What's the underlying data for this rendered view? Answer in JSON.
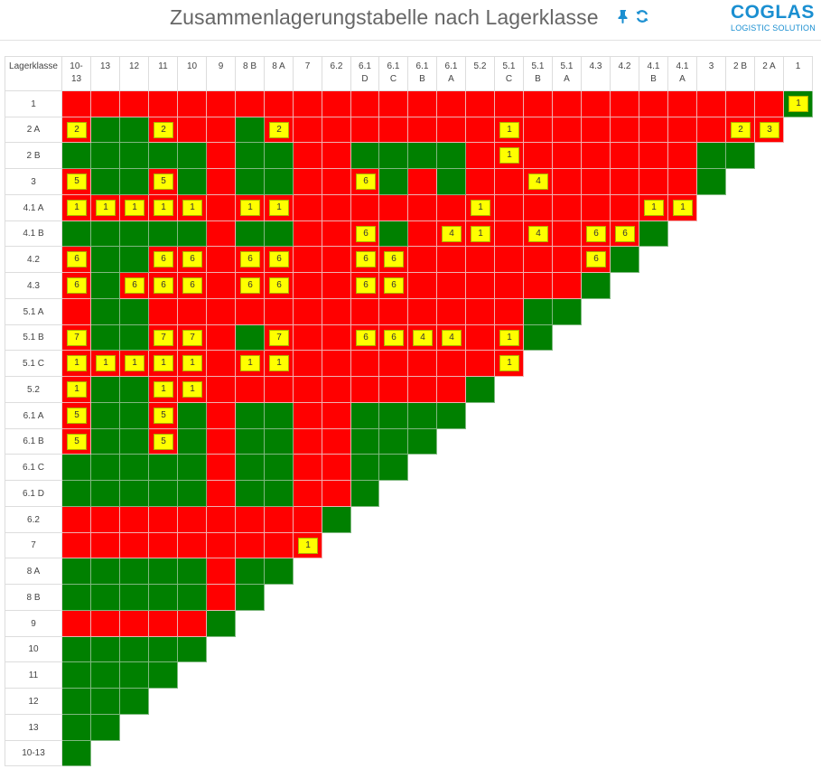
{
  "header": {
    "title": "Zusammenlagerungstabelle nach Lagerklasse",
    "pin_icon": "pin-icon",
    "refresh_icon": "refresh-icon",
    "logo_main": "COGLAS",
    "logo_sub": "LOGISTIC SOLUTION"
  },
  "colors": {
    "red": "#ff0000",
    "green": "#008000",
    "badge": "#ffff00",
    "accent": "#1a8fd1"
  },
  "table": {
    "corner_label": "Lagerklasse",
    "columns": [
      [
        "10-",
        "13"
      ],
      [
        "13"
      ],
      [
        "12"
      ],
      [
        "11"
      ],
      [
        "10"
      ],
      [
        "9"
      ],
      [
        "8 B"
      ],
      [
        "8 A"
      ],
      [
        "7"
      ],
      [
        "6.2"
      ],
      [
        "6.1",
        "D"
      ],
      [
        "6.1",
        "C"
      ],
      [
        "6.1",
        "B"
      ],
      [
        "6.1",
        "A"
      ],
      [
        "5.2"
      ],
      [
        "5.1",
        "C"
      ],
      [
        "5.1",
        "B"
      ],
      [
        "5.1",
        "A"
      ],
      [
        "4.3"
      ],
      [
        "4.2"
      ],
      [
        "4.1",
        "B"
      ],
      [
        "4.1",
        "A"
      ],
      [
        "3"
      ],
      [
        "2 B"
      ],
      [
        "2 A"
      ],
      [
        "1"
      ]
    ],
    "rows": [
      {
        "label": "1",
        "cells": "RRRRRRRRRRRRRRRRRRRRRRRRRG",
        "badges": {
          "25": "1"
        }
      },
      {
        "label": "2 A",
        "cells": "RGGRRRGRRRRRRRRRRRRRRRRRR",
        "badges": {
          "0": "2",
          "3": "2",
          "7": "2",
          "15": "1",
          "23": "2",
          "24": "3"
        }
      },
      {
        "label": "2 B",
        "cells": "GGGGGRGGRRGGGGRRRRRRRRGG",
        "badges": {
          "15": "1"
        }
      },
      {
        "label": "3",
        "cells": "RGGRGRGGRRRGRGRRRRRRRRG",
        "badges": {
          "0": "5",
          "3": "5",
          "10": "6",
          "16": "4"
        }
      },
      {
        "label": "4.1 A",
        "cells": "RRRRRRRRRRRRRRRRRRRRRR",
        "badges": {
          "0": "1",
          "1": "1",
          "2": "1",
          "3": "1",
          "4": "1",
          "6": "1",
          "7": "1",
          "14": "1",
          "20": "1",
          "21": "1"
        }
      },
      {
        "label": "4.1 B",
        "cells": "GGGGGRGGRRRGRRRRRRRRG",
        "badges": {
          "10": "6",
          "13": "4",
          "14": "1",
          "16": "4",
          "18": "6",
          "19": "6"
        }
      },
      {
        "label": "4.2",
        "cells": "RGGRRRRRRRRRRRRRRRRG",
        "badges": {
          "0": "6",
          "3": "6",
          "4": "6",
          "6": "6",
          "7": "6",
          "10": "6",
          "11": "6",
          "18": "6"
        }
      },
      {
        "label": "4.3",
        "cells": "RGRRRRRRRRRRRRRRRRG",
        "badges": {
          "0": "6",
          "2": "6",
          "3": "6",
          "4": "6",
          "6": "6",
          "7": "6",
          "10": "6",
          "11": "6"
        }
      },
      {
        "label": "5.1 A",
        "cells": "RGGRRRRRRRRRRRRRGG",
        "badges": {}
      },
      {
        "label": "5.1 B",
        "cells": "RGGRRRGRRRRRRRRRG",
        "badges": {
          "0": "7",
          "3": "7",
          "4": "7",
          "7": "7",
          "10": "6",
          "11": "6",
          "12": "4",
          "13": "4",
          "15": "1"
        }
      },
      {
        "label": "5.1 C",
        "cells": "RRRRRRRRRRRRRRRR",
        "badges": {
          "0": "1",
          "1": "1",
          "2": "1",
          "3": "1",
          "4": "1",
          "6": "1",
          "7": "1",
          "15": "1"
        }
      },
      {
        "label": "5.2",
        "cells": "RGGRRRRRRRRRRRG",
        "badges": {
          "0": "1",
          "3": "1",
          "4": "1"
        }
      },
      {
        "label": "6.1 A",
        "cells": "RGGRGRGGRRGGGG",
        "badges": {
          "0": "5",
          "3": "5"
        }
      },
      {
        "label": "6.1 B",
        "cells": "RGGRGRGGRRGGG",
        "badges": {
          "0": "5",
          "3": "5"
        }
      },
      {
        "label": "6.1 C",
        "cells": "GGGGGRGGRRGG",
        "badges": {}
      },
      {
        "label": "6.1 D",
        "cells": "GGGGGRGGRRG",
        "badges": {}
      },
      {
        "label": "6.2",
        "cells": "RRRRRRRRRG",
        "badges": {}
      },
      {
        "label": "7",
        "cells": "RRRRRRRRR",
        "badges": {
          "8": "1"
        }
      },
      {
        "label": "8 A",
        "cells": "GGGGGRGG",
        "badges": {}
      },
      {
        "label": "8 B",
        "cells": "GGGGGRG",
        "badges": {}
      },
      {
        "label": "9",
        "cells": "RRRRRG",
        "badges": {}
      },
      {
        "label": "10",
        "cells": "GGGGG",
        "badges": {}
      },
      {
        "label": "11",
        "cells": "GGGG",
        "badges": {}
      },
      {
        "label": "12",
        "cells": "GGG",
        "badges": {}
      },
      {
        "label": "13",
        "cells": "GG",
        "badges": {}
      },
      {
        "label": "10-13",
        "cells": "G",
        "badges": {}
      }
    ]
  }
}
